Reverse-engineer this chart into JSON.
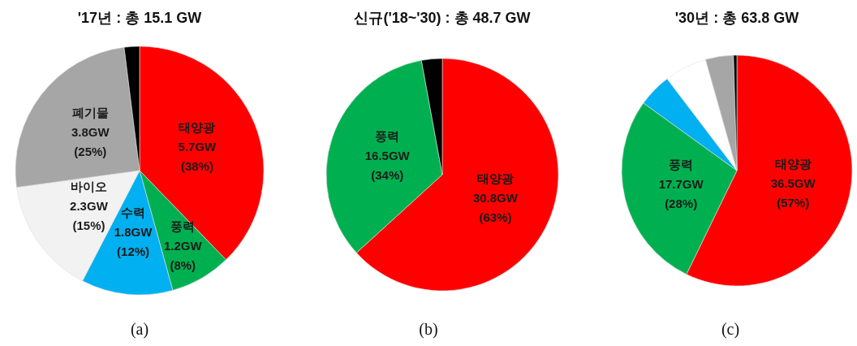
{
  "chart_data": [
    {
      "type": "pie",
      "title": "'17년 : 총 15.1 GW",
      "categories": [
        "태양광",
        "풍력",
        "수력",
        "바이오",
        "폐기물",
        null
      ],
      "values": [
        5.7,
        1.2,
        1.8,
        2.3,
        3.8,
        0.3
      ],
      "colors": [
        "#ff0000",
        "#00b050",
        "#00b0f0",
        "#f2f2f2",
        "#a6a6a6",
        "#000000"
      ],
      "value_labels": [
        "5.7GW\n(38%)",
        "1.2GW\n(8%)",
        "1.8GW\n(12%)",
        "2.3GW\n(15%)",
        "3.8GW\n(25%)",
        null
      ],
      "annotations": [
        "(a)"
      ]
    },
    {
      "type": "pie",
      "title": "신규('18~'30) : 총 48.7 GW",
      "categories": [
        "태양광",
        "풍력",
        null
      ],
      "values": [
        30.8,
        16.5,
        1.4
      ],
      "colors": [
        "#ff0000",
        "#00b050",
        "#000000"
      ],
      "value_labels": [
        "30.8GW\n(63%)",
        "16.5GW\n(34%)",
        null
      ],
      "annotations": [
        "(b)"
      ]
    },
    {
      "type": "pie",
      "title": "'30년 : 총 63.8 GW",
      "categories": [
        "태양광",
        "풍력",
        null,
        null,
        null,
        null
      ],
      "values": [
        36.5,
        17.7,
        3.0,
        3.8,
        2.5,
        0.3
      ],
      "colors": [
        "#ff0000",
        "#00b050",
        "#00b0f0",
        "#ffffff",
        "#a6a6a6",
        "#000000"
      ],
      "value_labels": [
        "36.5GW\n(57%)",
        "17.7GW\n(28%)",
        null,
        null,
        null,
        null
      ],
      "annotations": [
        "(c)"
      ]
    }
  ]
}
